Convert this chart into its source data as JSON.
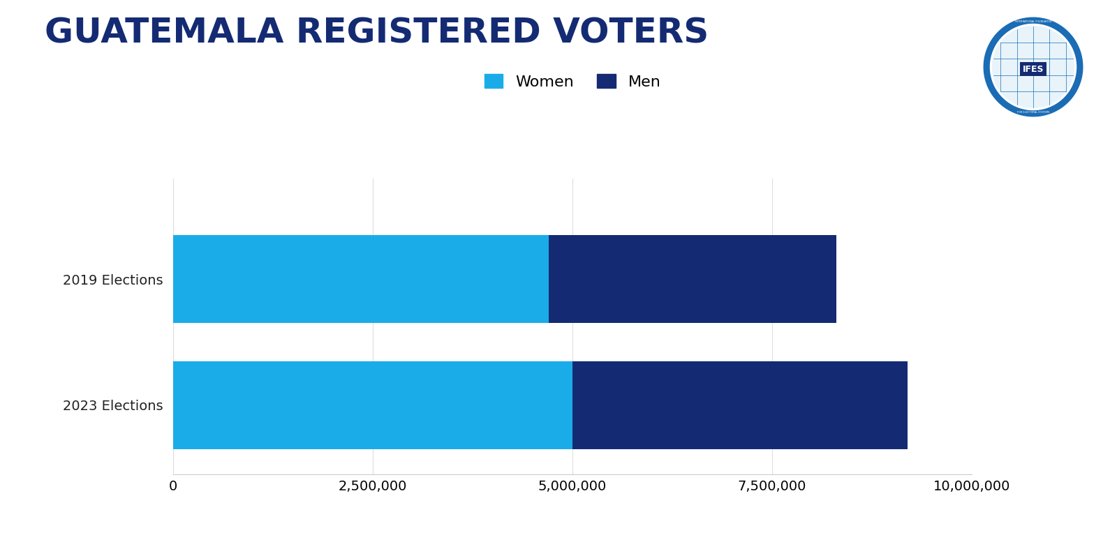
{
  "title": "GUATEMALA REGISTERED VOTERS",
  "categories": [
    "2019 Elections",
    "2023 Elections"
  ],
  "women_values": [
    4700000,
    5000000
  ],
  "men_values": [
    3600000,
    4200000
  ],
  "women_color": "#1AACE8",
  "men_color": "#142B73",
  "background_color": "#FFFFFF",
  "xlim": [
    0,
    10000000
  ],
  "xticks": [
    0,
    2500000,
    5000000,
    7500000,
    10000000
  ],
  "xtick_labels": [
    "0",
    "2,500,000",
    "5,000,000",
    "7,500,000",
    "10,000,000"
  ],
  "bar_height": 0.7,
  "title_fontsize": 36,
  "legend_fontsize": 16,
  "tick_fontsize": 14,
  "title_color": "#142B73",
  "label_color": "#222222"
}
